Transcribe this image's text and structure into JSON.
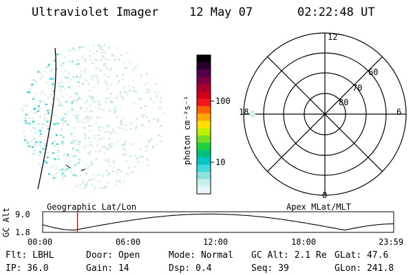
{
  "header": {
    "title": "Ultraviolet Imager",
    "date": "12 May 07",
    "time": "02:22:48 UT"
  },
  "colorbar": {
    "unit": "photon cm⁻²s⁻¹",
    "scale": "log",
    "ticks": [
      "100",
      "10"
    ],
    "colors": [
      "#000000",
      "#2a0030",
      "#55004f",
      "#800044",
      "#a8002a",
      "#d0001a",
      "#f01818",
      "#ff6000",
      "#ffa800",
      "#ffe000",
      "#c0f000",
      "#70e020",
      "#20d040",
      "#00c080",
      "#00c8c0",
      "#40d8d8",
      "#90e0e0",
      "#c8eeee",
      "#e8f6f6"
    ]
  },
  "polar": {
    "mlt_labels": [
      "12",
      "18",
      "6",
      "0"
    ],
    "lat_labels": [
      "60",
      "70",
      "80"
    ]
  },
  "altitude_plot": {
    "ylabel": "GC Alt",
    "yticks": [
      "9.0",
      "1.8"
    ],
    "left_label": "Geographic Lat/Lon",
    "right_label": "Apex MLat/MLT",
    "xticks": [
      "00:00",
      "06:00",
      "12:00",
      "18:00",
      "23:59"
    ],
    "current_time_fraction": 0.0991
  },
  "info": {
    "flt": "Flt: LBHL",
    "ip": "IP: 36.0",
    "door": "Door: Open",
    "gain": "Gain: 14",
    "mode": "Mode: Normal",
    "dsp": "Dsp:    0.4",
    "gcalt": "GC Alt: 2.1 Re",
    "seq": "Seq: 39",
    "glat": "GLat:  47.6",
    "glon": "GLon: 241.8"
  }
}
